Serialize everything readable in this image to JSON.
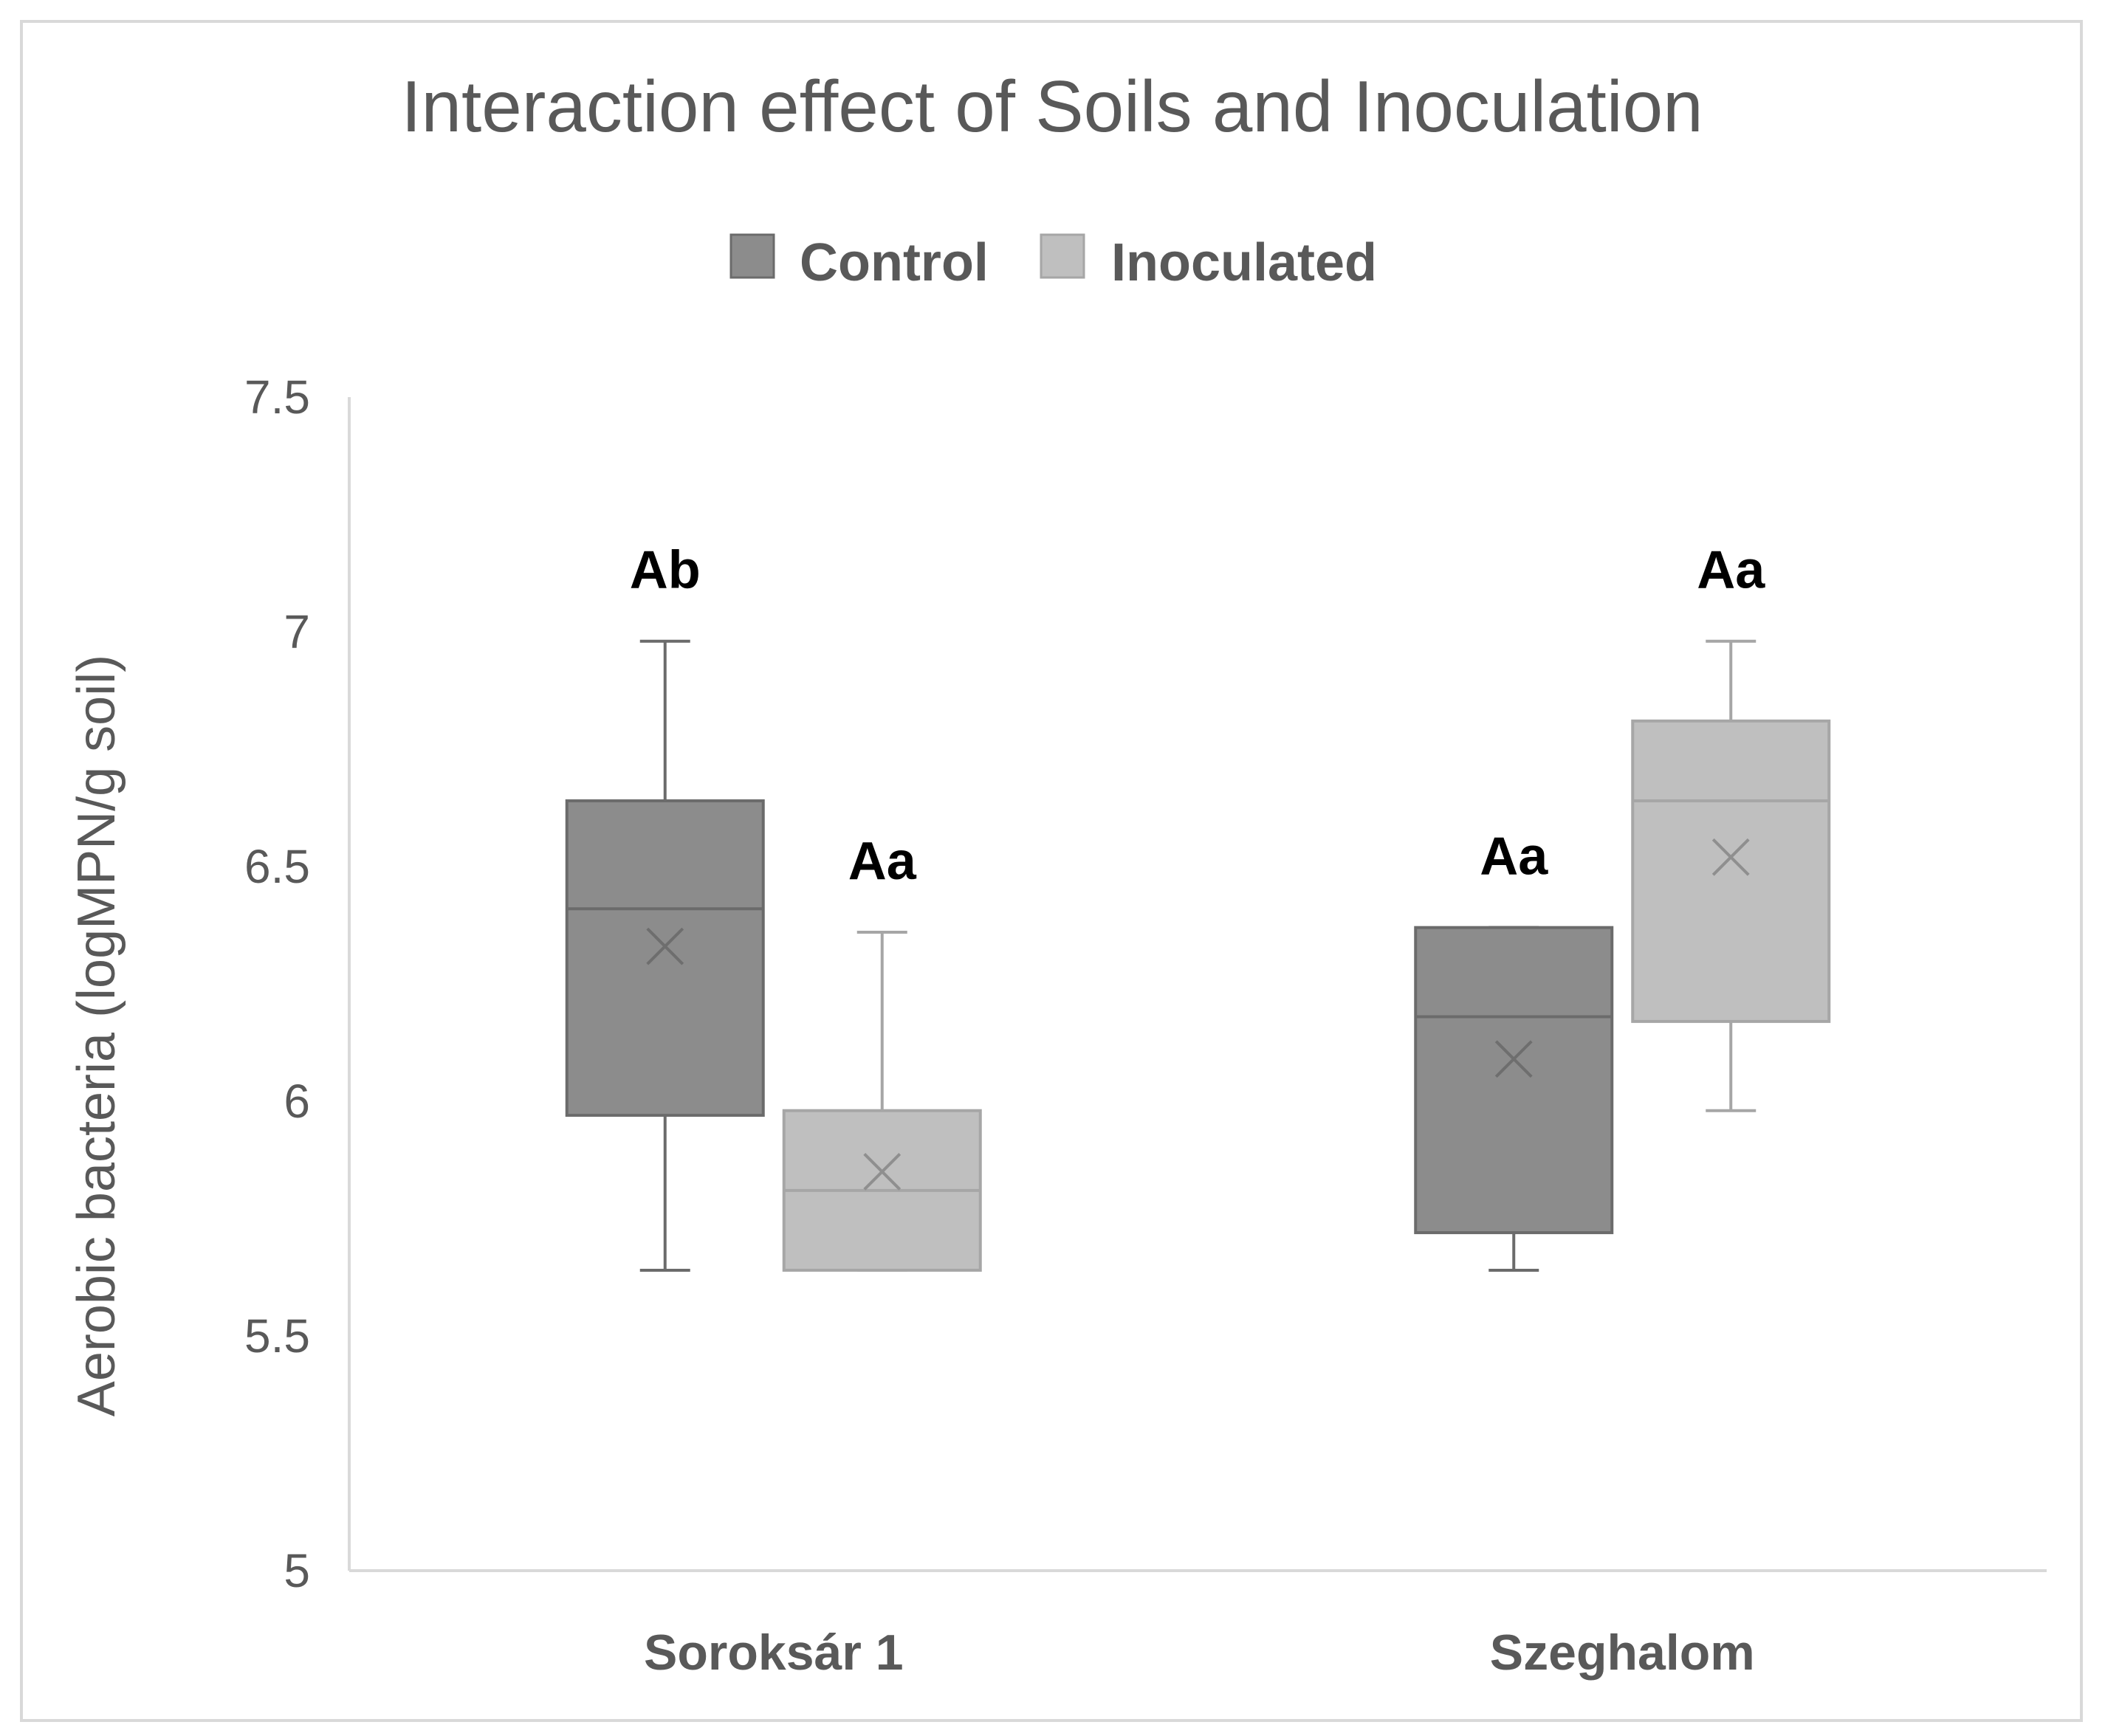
{
  "chart_data": {
    "type": "box",
    "title": "Interaction effect of Soils and Inoculation",
    "ylabel": "Aerobic bacteria (logMPN/g soil)",
    "xlabel": "",
    "ylim": [
      5,
      7.5
    ],
    "yticks": [
      "5",
      "5.5",
      "6",
      "6.5",
      "7",
      "7.5"
    ],
    "grid": false,
    "legend_position": "top",
    "categories": [
      "Soroksár 1",
      "Szeghalom"
    ],
    "series": [
      {
        "name": "Control",
        "color": "#8c8c8c",
        "boxes": [
          {
            "min": 5.64,
            "q1": 5.97,
            "median": 6.41,
            "q3": 6.64,
            "max": 6.98,
            "mean": 6.33,
            "label": "Ab"
          },
          {
            "min": 5.64,
            "q1": 5.72,
            "median": 6.18,
            "q3": 6.37,
            "max": 6.37,
            "mean": 6.09,
            "label": "Aa"
          }
        ]
      },
      {
        "name": "Inoculated",
        "color": "#bfbfbf",
        "boxes": [
          {
            "min": 5.64,
            "q1": 5.64,
            "median": 5.81,
            "q3": 5.98,
            "max": 6.36,
            "mean": 5.85,
            "label": "Aa"
          },
          {
            "min": 5.98,
            "q1": 6.17,
            "median": 6.64,
            "q3": 6.81,
            "max": 6.98,
            "mean": 6.52,
            "label": "Aa"
          }
        ]
      }
    ]
  }
}
